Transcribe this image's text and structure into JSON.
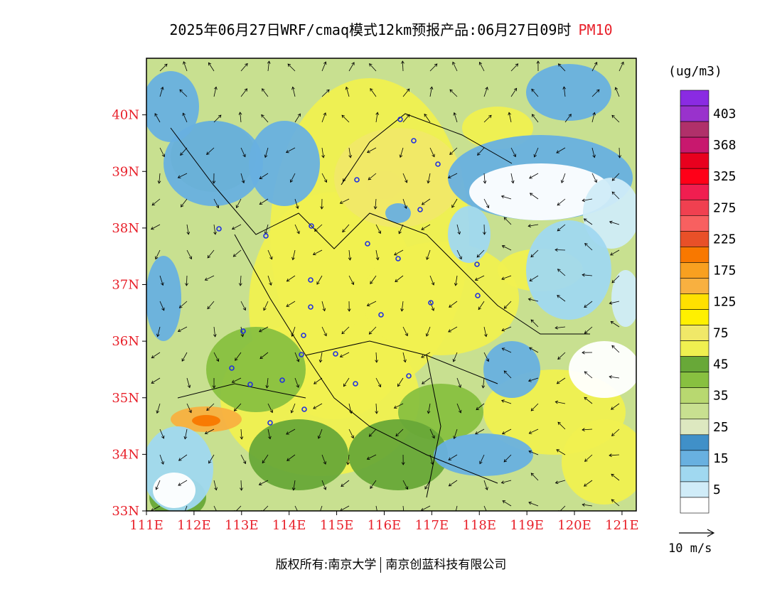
{
  "title": {
    "main": "2025年06月27日WRF/cmaq模式12km预报产品:06月27日09时",
    "variable": "PM10"
  },
  "map": {
    "lat_labels": [
      "40N",
      "39N",
      "38N",
      "37N",
      "36N",
      "35N",
      "34N",
      "33N"
    ],
    "lon_labels": [
      "111E",
      "112E",
      "113E",
      "114E",
      "115E",
      "116E",
      "117E",
      "118E",
      "119E",
      "120E",
      "121E"
    ],
    "lat_range": [
      33,
      41
    ],
    "lon_range": [
      111,
      121.3
    ],
    "axis_label_color": "#e8202a"
  },
  "legend": {
    "unit": "(ug/m3)",
    "bins": [
      {
        "label": "",
        "color": "#8a2be2"
      },
      {
        "label": "403",
        "color": "#9932cc"
      },
      {
        "label": "",
        "color": "#b0306a"
      },
      {
        "label": "368",
        "color": "#c8186e"
      },
      {
        "label": "",
        "color": "#e8001e"
      },
      {
        "label": "325",
        "color": "#ff0018"
      },
      {
        "label": "",
        "color": "#f01e50"
      },
      {
        "label": "275",
        "color": "#f04050"
      },
      {
        "label": "",
        "color": "#f86060"
      },
      {
        "label": "225",
        "color": "#e85028"
      },
      {
        "label": "",
        "color": "#f87800"
      },
      {
        "label": "175",
        "color": "#f8a020"
      },
      {
        "label": "",
        "color": "#f8b040"
      },
      {
        "label": "125",
        "color": "#ffe000"
      },
      {
        "label": "",
        "color": "#fff000"
      },
      {
        "label": "75",
        "color": "#f0e868"
      },
      {
        "label": "",
        "color": "#f0f050"
      },
      {
        "label": "45",
        "color": "#68a838"
      },
      {
        "label": "",
        "color": "#88c040"
      },
      {
        "label": "35",
        "color": "#b8d870"
      },
      {
        "label": "",
        "color": "#c8e090"
      },
      {
        "label": "25",
        "color": "#dde8c0"
      },
      {
        "label": "",
        "color": "#4090c8"
      },
      {
        "label": "15",
        "color": "#68b0e0"
      },
      {
        "label": "",
        "color": "#a0d8f0"
      },
      {
        "label": "5",
        "color": "#d0ecf8"
      },
      {
        "label": "",
        "color": "#ffffff"
      }
    ]
  },
  "wind_reference": {
    "label": "10 m/s"
  },
  "footer": {
    "left": "版权所有:南京大学",
    "right": "南京创蓝科技有限公司"
  }
}
